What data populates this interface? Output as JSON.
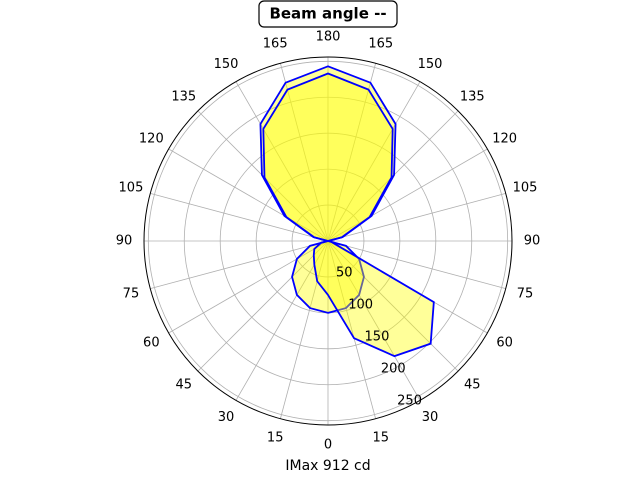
{
  "chart_data": {
    "type": "polar",
    "title": "Beam angle --",
    "x_label": "IMax 912 cd",
    "x": [
      0,
      15,
      30,
      45,
      60,
      75,
      90,
      105,
      120,
      135,
      150,
      165,
      180,
      195,
      210,
      225,
      240,
      255,
      270,
      285,
      300,
      315,
      330,
      345,
      360
    ],
    "series": [
      {
        "color": "#0000ff",
        "values": [
          100,
          96.6,
          86.6,
          70.7,
          50,
          25.9,
          0,
          21,
          70,
          130,
          188,
          228,
          243,
          228,
          188,
          130,
          70,
          21,
          0,
          25.9,
          50,
          70.7,
          86.6,
          96.6,
          100
        ]
      },
      {
        "color": "#0000ff",
        "values": [
          75,
          140,
          185,
          202,
          170,
          5,
          0,
          20,
          67,
          125,
          180,
          218,
          233,
          218,
          180,
          125,
          67,
          20,
          0,
          10,
          22,
          28,
          38,
          58,
          75
        ]
      }
    ],
    "fill_color": "#ffff00",
    "ylim": [
      0,
      256
    ],
    "yticks": [
      50,
      100,
      150,
      200,
      250
    ],
    "xticks": [
      0,
      15,
      30,
      45,
      60,
      75,
      90,
      105,
      120,
      135,
      150,
      165,
      180,
      {
        "value": 195,
        "label": "165"
      },
      {
        "value": 210,
        "label": "150"
      },
      {
        "value": 225,
        "label": "135"
      },
      {
        "value": 240,
        "label": "120"
      },
      {
        "value": 255,
        "label": "105"
      },
      {
        "value": 270,
        "label": "90"
      },
      {
        "value": 285,
        "label": "75"
      },
      {
        "value": 300,
        "label": "60"
      },
      {
        "value": 315,
        "label": "45"
      },
      {
        "value": 330,
        "label": "30"
      },
      {
        "value": 345,
        "label": "15"
      }
    ],
    "grid": true
  }
}
